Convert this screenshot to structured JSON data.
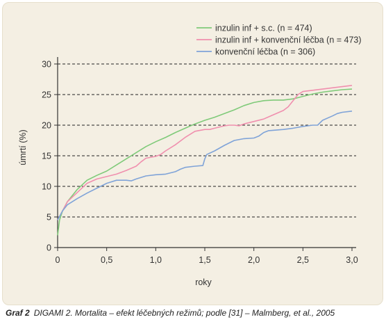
{
  "chart_data": {
    "type": "line",
    "xlabel": "roky",
    "ylabel": "úmrtí (%)",
    "xlim": [
      0,
      3.0
    ],
    "ylim": [
      0,
      30
    ],
    "x_ticks": [
      "0",
      "0,5",
      "1,0",
      "1,5",
      "2,0",
      "2,5",
      "3,0"
    ],
    "y_ticks": [
      "0",
      "5",
      "10",
      "15",
      "20",
      "25",
      "30"
    ],
    "grid": "dashed horizontal",
    "legend_position": "top-right",
    "series": [
      {
        "name": "inzulin inf + s.c. (n = 474)",
        "color": "#7fca79",
        "points": [
          [
            0,
            2.0
          ],
          [
            0.02,
            4.5
          ],
          [
            0.05,
            6.0
          ],
          [
            0.1,
            7.5
          ],
          [
            0.2,
            9.5
          ],
          [
            0.3,
            11.0
          ],
          [
            0.4,
            11.8
          ],
          [
            0.5,
            12.5
          ],
          [
            0.6,
            13.5
          ],
          [
            0.7,
            14.5
          ],
          [
            0.8,
            15.5
          ],
          [
            0.9,
            16.5
          ],
          [
            1.0,
            17.3
          ],
          [
            1.1,
            18.0
          ],
          [
            1.2,
            18.8
          ],
          [
            1.3,
            19.5
          ],
          [
            1.4,
            20.2
          ],
          [
            1.5,
            20.8
          ],
          [
            1.6,
            21.3
          ],
          [
            1.7,
            21.9
          ],
          [
            1.8,
            22.5
          ],
          [
            1.9,
            23.2
          ],
          [
            2.0,
            23.7
          ],
          [
            2.1,
            24.0
          ],
          [
            2.2,
            24.1
          ],
          [
            2.3,
            24.1
          ],
          [
            2.4,
            24.3
          ],
          [
            2.5,
            24.7
          ],
          [
            2.6,
            25.1
          ],
          [
            2.7,
            25.4
          ],
          [
            2.8,
            25.6
          ],
          [
            2.9,
            25.8
          ],
          [
            3.0,
            25.9
          ]
        ]
      },
      {
        "name": "inzulin inf + konvenční léčba (n = 473)",
        "color": "#f08fae",
        "points": [
          [
            0,
            4.5
          ],
          [
            0.05,
            6.0
          ],
          [
            0.1,
            7.5
          ],
          [
            0.2,
            9.0
          ],
          [
            0.3,
            10.5
          ],
          [
            0.4,
            11.2
          ],
          [
            0.5,
            11.6
          ],
          [
            0.6,
            12.0
          ],
          [
            0.7,
            12.6
          ],
          [
            0.8,
            13.3
          ],
          [
            0.85,
            14.0
          ],
          [
            0.9,
            14.6
          ],
          [
            1.0,
            14.9
          ],
          [
            1.05,
            15.2
          ],
          [
            1.1,
            15.8
          ],
          [
            1.2,
            16.8
          ],
          [
            1.3,
            18.0
          ],
          [
            1.4,
            19.0
          ],
          [
            1.5,
            19.3
          ],
          [
            1.55,
            19.3
          ],
          [
            1.6,
            19.5
          ],
          [
            1.7,
            19.9
          ],
          [
            1.75,
            20.0
          ],
          [
            1.8,
            20.0
          ],
          [
            1.85,
            19.9
          ],
          [
            1.9,
            20.2
          ],
          [
            2.0,
            20.6
          ],
          [
            2.1,
            21.0
          ],
          [
            2.2,
            21.7
          ],
          [
            2.3,
            22.4
          ],
          [
            2.35,
            23.0
          ],
          [
            2.4,
            24.0
          ],
          [
            2.45,
            25.0
          ],
          [
            2.5,
            25.5
          ],
          [
            2.6,
            25.7
          ],
          [
            2.7,
            25.9
          ],
          [
            2.8,
            26.1
          ],
          [
            2.9,
            26.3
          ],
          [
            3.0,
            26.5
          ]
        ]
      },
      {
        "name": "konvenční léčba (n = 306)",
        "color": "#7fa3d8",
        "points": [
          [
            0,
            4.5
          ],
          [
            0.05,
            6.0
          ],
          [
            0.1,
            7.0
          ],
          [
            0.2,
            8.0
          ],
          [
            0.3,
            8.9
          ],
          [
            0.4,
            9.7
          ],
          [
            0.5,
            10.5
          ],
          [
            0.6,
            11.0
          ],
          [
            0.7,
            11.0
          ],
          [
            0.75,
            10.9
          ],
          [
            0.8,
            11.2
          ],
          [
            0.9,
            11.7
          ],
          [
            1.0,
            11.9
          ],
          [
            1.1,
            12.0
          ],
          [
            1.2,
            12.4
          ],
          [
            1.25,
            12.8
          ],
          [
            1.3,
            13.1
          ],
          [
            1.4,
            13.3
          ],
          [
            1.48,
            13.4
          ],
          [
            1.5,
            14.5
          ],
          [
            1.52,
            15.2
          ],
          [
            1.6,
            15.8
          ],
          [
            1.7,
            16.7
          ],
          [
            1.8,
            17.5
          ],
          [
            1.9,
            17.8
          ],
          [
            2.0,
            17.9
          ],
          [
            2.05,
            18.2
          ],
          [
            2.1,
            18.8
          ],
          [
            2.15,
            19.1
          ],
          [
            2.3,
            19.3
          ],
          [
            2.4,
            19.5
          ],
          [
            2.5,
            19.8
          ],
          [
            2.6,
            20.0
          ],
          [
            2.65,
            20.0
          ],
          [
            2.7,
            20.8
          ],
          [
            2.8,
            21.5
          ],
          [
            2.85,
            21.9
          ],
          [
            2.9,
            22.1
          ],
          [
            3.0,
            22.3
          ]
        ]
      }
    ]
  },
  "caption": {
    "label": "Graf 2",
    "text": "DIGAMI 2. Mortalita – efekt léčebných režimů; podle [31] – Malmberg, et al., 2005"
  }
}
